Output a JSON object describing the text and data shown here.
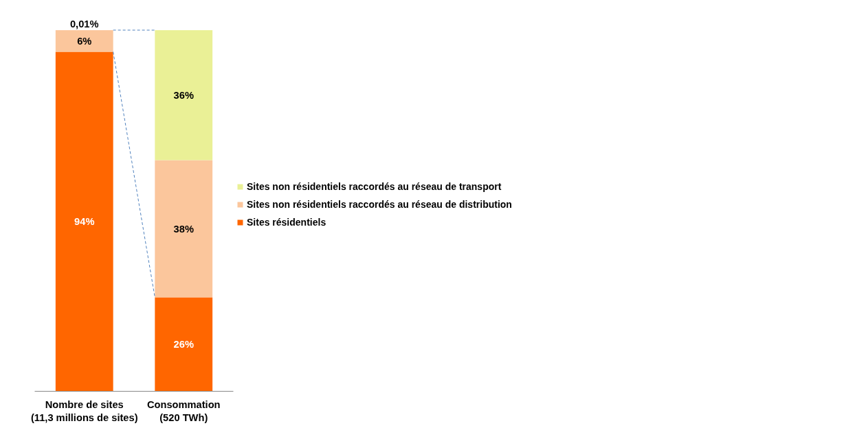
{
  "chart_data": {
    "type": "bar",
    "stacked": true,
    "categories": [
      "Nombre de sites\n(11,3 millions de sites)",
      "Consommation\n(520 TWh)"
    ],
    "series": [
      {
        "name": "Sites résidentiels",
        "color": "#ff6600",
        "values": [
          94,
          26
        ],
        "value_labels": [
          "94%",
          "26%"
        ]
      },
      {
        "name": "Sites non résidentiels raccordés au réseau de distribution",
        "color": "#fbc69c",
        "values": [
          6,
          38
        ],
        "value_labels": [
          "6%",
          "38%"
        ]
      },
      {
        "name": "Sites non résidentiels raccordés au réseau de transport",
        "color": "#eaf096",
        "values": [
          0.01,
          36
        ],
        "value_labels": [
          "0,01%",
          "36%"
        ]
      }
    ],
    "legend": "right",
    "grid": false
  }
}
